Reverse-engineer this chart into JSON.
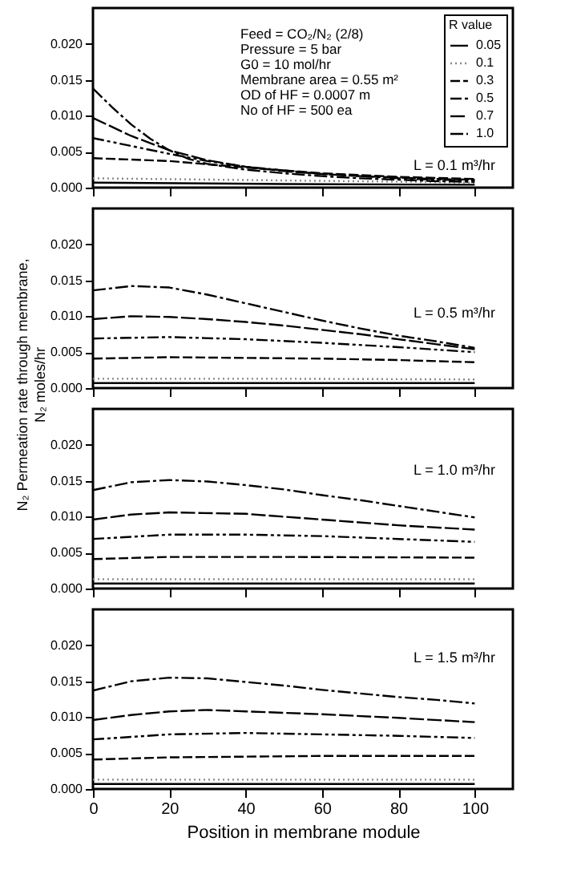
{
  "chart_data": [
    {
      "type": "line",
      "ylabel": "N₂ Permeation rate through membrane,\nN₂ moles/hr",
      "legend_title": "R value",
      "legend": "top right",
      "grid": false,
      "tick_labels": "y",
      "xlim": [
        0,
        110
      ],
      "xticks": [
        0,
        20,
        40,
        60,
        80,
        100
      ],
      "ylim": [
        0,
        0.025
      ],
      "yticks": [
        {
          "value": 0,
          "label": "0.000"
        },
        {
          "value": 0.005,
          "label": "0.005"
        },
        {
          "value": 0.01,
          "label": "0.010"
        },
        {
          "value": 0.015,
          "label": "0.015"
        },
        {
          "value": 0.02,
          "label": "0.020"
        }
      ],
      "annotations": [
        "Feed = CO₂/N₂ (2/8)",
        "Pressure = 5 bar",
        "G0 = 10 mol/hr",
        "Membrane area = 0.55 m²",
        "OD of HF =  0.0007 m",
        "No of HF = 500 ea",
        "L = 0.1 m³/hr"
      ],
      "series": [
        {
          "name": "0.05",
          "color": "#000000",
          "line_style": "solid",
          "x": [
            0,
            50,
            100
          ],
          "values": [
            0.0007,
            0.0005,
            0.0004
          ]
        },
        {
          "name": "0.1",
          "color": "#888888",
          "line_style": "dotted",
          "x": [
            0,
            50,
            100
          ],
          "values": [
            0.0013,
            0.001,
            0.0007
          ]
        },
        {
          "name": "0.3",
          "color": "#000000",
          "line_style": "dashed",
          "x": [
            0,
            20,
            40,
            60,
            80,
            100
          ],
          "values": [
            0.0041,
            0.0037,
            0.0028,
            0.002,
            0.0015,
            0.0012
          ]
        },
        {
          "name": "0.5",
          "color": "#000000",
          "line_style": "dashed",
          "x": [
            0,
            10,
            20,
            30,
            40,
            50,
            60,
            70,
            80,
            90,
            100
          ],
          "values": [
            0.0069,
            0.0058,
            0.0047,
            0.0037,
            0.0029,
            0.0024,
            0.0019,
            0.0016,
            0.0013,
            0.0011,
            0.001
          ]
        },
        {
          "name": "0.7",
          "color": "#000000",
          "line_style": "dashed",
          "x": [
            0,
            10,
            20,
            30,
            40,
            50,
            60,
            70,
            80,
            90,
            100
          ],
          "values": [
            0.0097,
            0.0072,
            0.0052,
            0.0038,
            0.0029,
            0.0023,
            0.0019,
            0.0016,
            0.0014,
            0.0012,
            0.0011
          ]
        },
        {
          "name": "1.0",
          "color": "#000000",
          "line_style": "dashed",
          "x": [
            0,
            5,
            10,
            15,
            20,
            25,
            30,
            40,
            50,
            60,
            70,
            80,
            90,
            100
          ],
          "values": [
            0.0138,
            0.0112,
            0.0088,
            0.0068,
            0.0052,
            0.004,
            0.0033,
            0.0025,
            0.002,
            0.0016,
            0.0013,
            0.0011,
            0.0009,
            0.0008
          ]
        }
      ]
    },
    {
      "type": "line",
      "grid": false,
      "tick_labels": "y",
      "xlim": [
        0,
        110
      ],
      "xticks": [
        0,
        20,
        40,
        60,
        80,
        100
      ],
      "ylim": [
        0,
        0.025
      ],
      "yticks": [
        {
          "value": 0,
          "label": "0.000"
        },
        {
          "value": 0.005,
          "label": "0.005"
        },
        {
          "value": 0.01,
          "label": "0.010"
        },
        {
          "value": 0.015,
          "label": "0.015"
        },
        {
          "value": 0.02,
          "label": "0.020"
        }
      ],
      "annotations": [
        "L = 0.5 m³/hr"
      ],
      "series": [
        {
          "color": "#000000",
          "line_style": "solid",
          "x": [
            0,
            50,
            100
          ],
          "values": [
            0.0007,
            0.0007,
            0.0007
          ]
        },
        {
          "color": "#888888",
          "line_style": "dotted",
          "x": [
            0,
            50,
            100
          ],
          "values": [
            0.0013,
            0.0013,
            0.0012
          ]
        },
        {
          "color": "#000000",
          "line_style": "dashed",
          "x": [
            0,
            20,
            40,
            60,
            80,
            100
          ],
          "values": [
            0.0041,
            0.0043,
            0.0042,
            0.0041,
            0.0039,
            0.0036
          ]
        },
        {
          "color": "#000000",
          "line_style": "dashed",
          "x": [
            0,
            20,
            40,
            60,
            80,
            100
          ],
          "values": [
            0.0069,
            0.0071,
            0.0068,
            0.0063,
            0.0057,
            0.005
          ]
        },
        {
          "color": "#000000",
          "line_style": "dashed",
          "x": [
            0,
            10,
            20,
            30,
            40,
            50,
            60,
            70,
            80,
            90,
            100
          ],
          "values": [
            0.0096,
            0.01,
            0.0099,
            0.0096,
            0.0092,
            0.0087,
            0.0081,
            0.0075,
            0.0068,
            0.0061,
            0.0054
          ]
        },
        {
          "color": "#000000",
          "line_style": "dashed",
          "x": [
            0,
            10,
            20,
            30,
            40,
            50,
            60,
            70,
            80,
            90,
            100
          ],
          "values": [
            0.0136,
            0.0142,
            0.014,
            0.013,
            0.0118,
            0.0106,
            0.0094,
            0.0083,
            0.0073,
            0.0065,
            0.0056
          ]
        }
      ]
    },
    {
      "type": "line",
      "grid": false,
      "tick_labels": "y",
      "xlim": [
        0,
        110
      ],
      "xticks": [
        0,
        20,
        40,
        60,
        80,
        100
      ],
      "ylim": [
        0,
        0.025
      ],
      "yticks": [
        {
          "value": 0,
          "label": "0.000"
        },
        {
          "value": 0.005,
          "label": "0.005"
        },
        {
          "value": 0.01,
          "label": "0.010"
        },
        {
          "value": 0.015,
          "label": "0.015"
        },
        {
          "value": 0.02,
          "label": "0.020"
        }
      ],
      "annotations": [
        "L = 1.0 m³/hr"
      ],
      "series": [
        {
          "color": "#000000",
          "line_style": "solid",
          "x": [
            0,
            50,
            100
          ],
          "values": [
            0.0007,
            0.0007,
            0.0007
          ]
        },
        {
          "color": "#888888",
          "line_style": "dotted",
          "x": [
            0,
            50,
            100
          ],
          "values": [
            0.0013,
            0.0013,
            0.0013
          ]
        },
        {
          "color": "#000000",
          "line_style": "dashed",
          "x": [
            0,
            20,
            50,
            100
          ],
          "values": [
            0.0041,
            0.0044,
            0.0044,
            0.0043
          ]
        },
        {
          "color": "#000000",
          "line_style": "dashed",
          "x": [
            0,
            20,
            40,
            60,
            80,
            100
          ],
          "values": [
            0.0069,
            0.0075,
            0.0075,
            0.0073,
            0.0069,
            0.0065
          ]
        },
        {
          "color": "#000000",
          "line_style": "dashed",
          "x": [
            0,
            10,
            20,
            40,
            60,
            80,
            100
          ],
          "values": [
            0.0096,
            0.0103,
            0.0106,
            0.0104,
            0.0096,
            0.0088,
            0.0082
          ]
        },
        {
          "color": "#000000",
          "line_style": "dashed",
          "x": [
            0,
            10,
            20,
            30,
            40,
            50,
            60,
            70,
            80,
            90,
            100
          ],
          "values": [
            0.0137,
            0.0148,
            0.0151,
            0.0149,
            0.0144,
            0.0138,
            0.013,
            0.0123,
            0.0115,
            0.0107,
            0.0099
          ]
        }
      ]
    },
    {
      "type": "line",
      "xlabel": "Position in membrane module",
      "grid": false,
      "xlim": [
        0,
        110
      ],
      "xticks": [
        0,
        20,
        40,
        60,
        80,
        100
      ],
      "ylim": [
        0,
        0.025
      ],
      "yticks": [
        {
          "value": 0,
          "label": "0.000"
        },
        {
          "value": 0.005,
          "label": "0.005"
        },
        {
          "value": 0.01,
          "label": "0.010"
        },
        {
          "value": 0.015,
          "label": "0.015"
        },
        {
          "value": 0.02,
          "label": "0.020"
        }
      ],
      "annotations": [
        "L = 1.5 m³/hr"
      ],
      "series": [
        {
          "color": "#000000",
          "line_style": "solid",
          "x": [
            0,
            50,
            100
          ],
          "values": [
            0.0007,
            0.0007,
            0.0007
          ]
        },
        {
          "color": "#888888",
          "line_style": "dotted",
          "x": [
            0,
            50,
            100
          ],
          "values": [
            0.0013,
            0.0013,
            0.0013
          ]
        },
        {
          "color": "#000000",
          "line_style": "dashed",
          "x": [
            0,
            20,
            40,
            60,
            80,
            100
          ],
          "values": [
            0.0041,
            0.0044,
            0.0045,
            0.0046,
            0.0046,
            0.0046
          ]
        },
        {
          "color": "#000000",
          "line_style": "dashed",
          "x": [
            0,
            20,
            40,
            60,
            80,
            100
          ],
          "values": [
            0.0069,
            0.0076,
            0.0078,
            0.0076,
            0.0074,
            0.0071
          ]
        },
        {
          "color": "#000000",
          "line_style": "dashed",
          "x": [
            0,
            10,
            20,
            30,
            40,
            60,
            80,
            100
          ],
          "values": [
            0.0096,
            0.0103,
            0.0108,
            0.011,
            0.0108,
            0.0104,
            0.0099,
            0.0093
          ]
        },
        {
          "color": "#000000",
          "line_style": "dashed",
          "x": [
            0,
            10,
            20,
            30,
            40,
            50,
            60,
            70,
            80,
            90,
            100
          ],
          "values": [
            0.0137,
            0.015,
            0.0155,
            0.0154,
            0.0149,
            0.0144,
            0.0138,
            0.0133,
            0.0128,
            0.0124,
            0.0119
          ]
        }
      ]
    }
  ]
}
